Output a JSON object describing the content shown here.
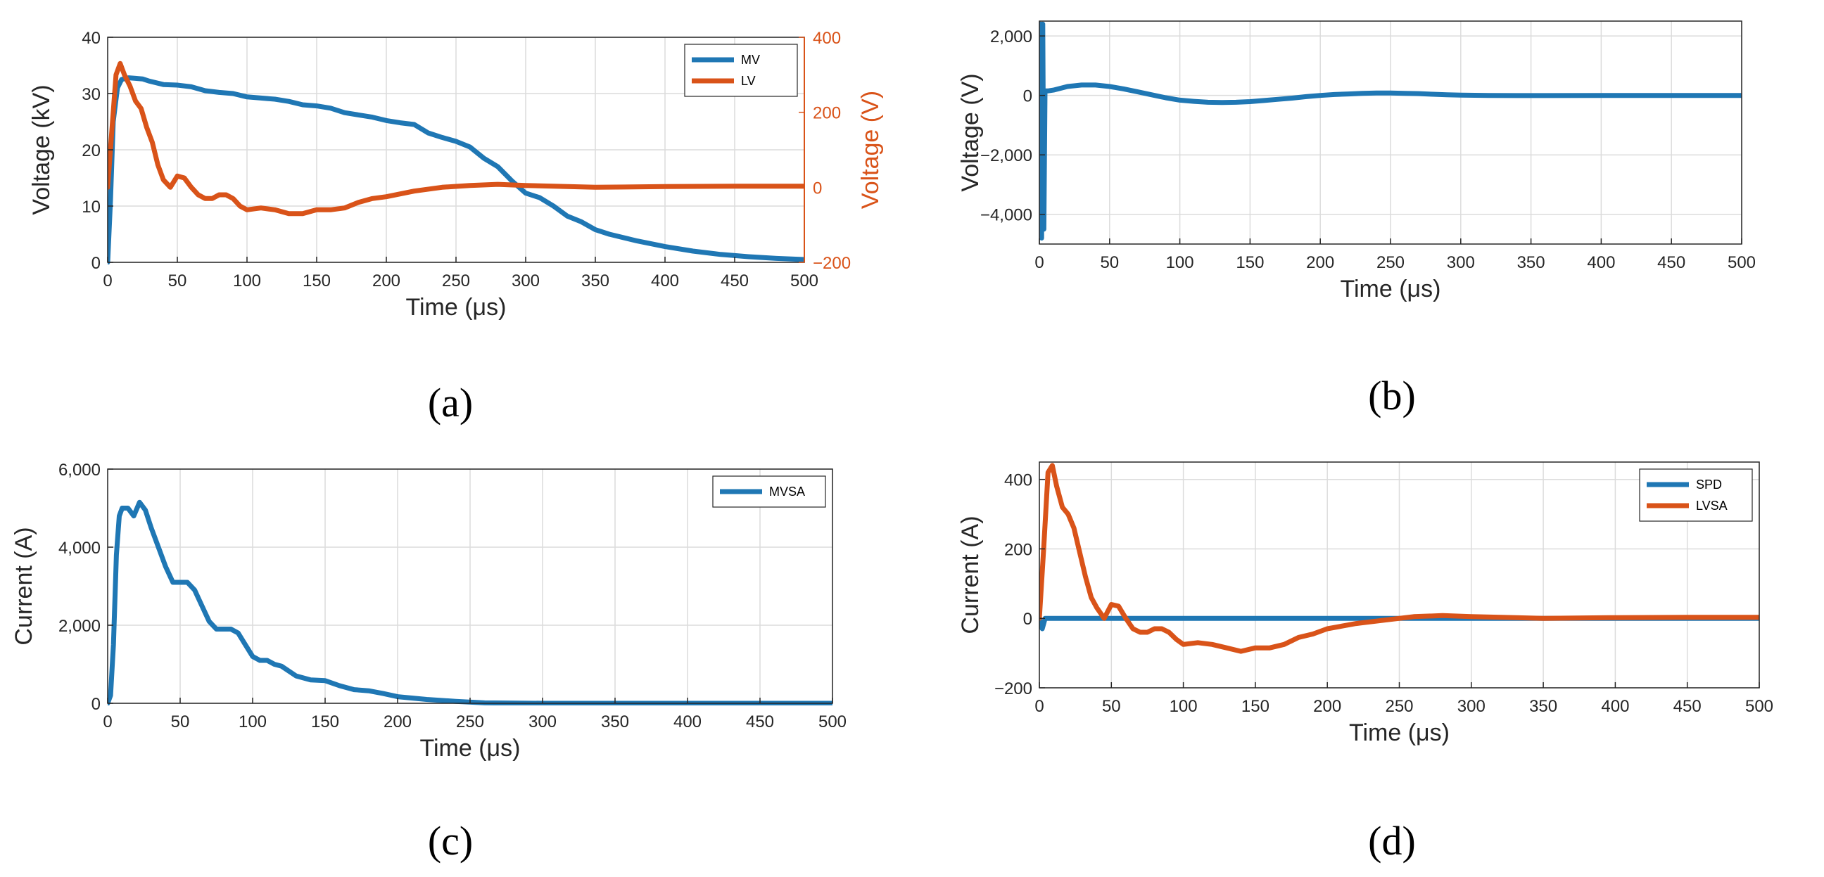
{
  "colors": {
    "blue": "#1f77b4",
    "orange": "#d95319",
    "grid": "#dcdcdc",
    "axis": "#262626"
  },
  "chart_data": [
    {
      "panel": "(a)",
      "type": "line",
      "xlabel": "Time (μs)",
      "ylabel": "Voltage (kV)",
      "ylabel_right": "Voltage (V)",
      "xlim": [
        0,
        500
      ],
      "ylim": [
        0,
        40
      ],
      "ylim_right": [
        -200,
        400
      ],
      "xticks": [
        0,
        50,
        100,
        150,
        200,
        250,
        300,
        350,
        400,
        450,
        500
      ],
      "yticks": [
        0,
        10,
        20,
        30,
        40
      ],
      "yticks_right": [
        -200,
        0,
        200,
        400
      ],
      "grid": true,
      "legend_position": "top-right",
      "series": [
        {
          "name": "MV",
          "color": "#1f77b4",
          "axis": "left",
          "x": [
            0,
            2,
            4,
            7,
            10,
            15,
            20,
            25,
            30,
            40,
            50,
            60,
            70,
            80,
            90,
            100,
            110,
            120,
            130,
            140,
            150,
            160,
            170,
            180,
            190,
            200,
            210,
            220,
            230,
            240,
            250,
            260,
            270,
            280,
            290,
            300,
            310,
            320,
            330,
            340,
            350,
            360,
            380,
            400,
            420,
            440,
            460,
            480,
            500
          ],
          "y": [
            0,
            11,
            25,
            31,
            32.5,
            32.8,
            32.7,
            32.6,
            32.2,
            31.6,
            31.5,
            31.2,
            30.5,
            30.2,
            30.0,
            29.4,
            29.2,
            29.0,
            28.6,
            28.0,
            27.8,
            27.4,
            26.6,
            26.2,
            25.8,
            25.2,
            24.8,
            24.5,
            23.0,
            22.2,
            21.5,
            20.5,
            18.5,
            17.0,
            14.5,
            12.3,
            11.5,
            10.0,
            8.2,
            7.2,
            5.8,
            5.0,
            3.8,
            2.8,
            2.0,
            1.4,
            1.0,
            0.7,
            0.5
          ]
        },
        {
          "name": "LV",
          "color": "#d95319",
          "axis": "right",
          "x": [
            0,
            3,
            6,
            9,
            12,
            16,
            20,
            24,
            28,
            32,
            36,
            40,
            45,
            50,
            55,
            60,
            65,
            70,
            75,
            80,
            85,
            90,
            95,
            100,
            110,
            120,
            130,
            140,
            150,
            160,
            170,
            180,
            190,
            200,
            220,
            240,
            260,
            280,
            300,
            350,
            400,
            450,
            500
          ],
          "y": [
            0,
            150,
            300,
            330,
            300,
            270,
            230,
            210,
            160,
            120,
            60,
            20,
            0,
            30,
            25,
            0,
            -20,
            -30,
            -30,
            -20,
            -20,
            -30,
            -50,
            -60,
            -55,
            -60,
            -70,
            -70,
            -60,
            -60,
            -55,
            -40,
            -30,
            -25,
            -10,
            0,
            5,
            8,
            5,
            0,
            2,
            3,
            3
          ]
        }
      ]
    },
    {
      "panel": "(b)",
      "type": "line",
      "xlabel": "Time (μs)",
      "ylabel": "Voltage (V)",
      "xlim": [
        0,
        500
      ],
      "ylim": [
        -5000,
        2500
      ],
      "xticks": [
        0,
        50,
        100,
        150,
        200,
        250,
        300,
        350,
        400,
        450,
        500
      ],
      "yticks": [
        -4000,
        -2000,
        0,
        2000
      ],
      "ytick_labels": [
        "−4,000",
        "−2,000",
        "0",
        "2,000"
      ],
      "grid": true,
      "series": [
        {
          "color": "#1f77b4",
          "x": [
            0,
            0.8,
            1.6,
            2.4,
            3.2,
            4,
            6,
            10,
            20,
            30,
            40,
            50,
            60,
            70,
            80,
            90,
            100,
            110,
            120,
            130,
            140,
            150,
            160,
            170,
            180,
            190,
            200,
            210,
            220,
            230,
            240,
            250,
            260,
            270,
            280,
            290,
            300,
            320,
            340,
            360,
            400,
            450,
            500
          ],
          "y": [
            0,
            2400,
            -4800,
            2400,
            -4500,
            150,
            150,
            180,
            300,
            350,
            350,
            300,
            220,
            120,
            20,
            -80,
            -160,
            -200,
            -230,
            -240,
            -230,
            -210,
            -170,
            -130,
            -90,
            -40,
            0,
            30,
            50,
            70,
            80,
            80,
            70,
            60,
            40,
            20,
            10,
            0,
            -5,
            -5,
            0,
            0,
            0
          ]
        }
      ]
    },
    {
      "panel": "(c)",
      "type": "line",
      "xlabel": "Time (μs)",
      "ylabel": "Current (A)",
      "xlim": [
        0,
        500
      ],
      "ylim": [
        0,
        6000
      ],
      "xticks": [
        0,
        50,
        100,
        150,
        200,
        250,
        300,
        350,
        400,
        450,
        500
      ],
      "yticks": [
        0,
        2000,
        4000,
        6000
      ],
      "ytick_labels": [
        "0",
        "2,000",
        "4,000",
        "6,000"
      ],
      "grid": true,
      "legend_position": "top-right",
      "series": [
        {
          "name": "MVSA",
          "color": "#1f77b4",
          "x": [
            0,
            2,
            4,
            6,
            8,
            10,
            14,
            18,
            22,
            26,
            30,
            35,
            40,
            45,
            50,
            55,
            60,
            65,
            70,
            75,
            80,
            85,
            90,
            95,
            100,
            105,
            110,
            115,
            120,
            130,
            140,
            150,
            160,
            170,
            180,
            190,
            200,
            220,
            240,
            260,
            300,
            350,
            400,
            450,
            500
          ],
          "y": [
            0,
            200,
            1500,
            3800,
            4800,
            5000,
            5000,
            4800,
            5150,
            4950,
            4500,
            4000,
            3500,
            3100,
            3100,
            3100,
            2900,
            2500,
            2100,
            1900,
            1900,
            1900,
            1800,
            1500,
            1200,
            1100,
            1100,
            1000,
            950,
            700,
            600,
            580,
            450,
            350,
            320,
            250,
            170,
            100,
            50,
            10,
            0,
            0,
            0,
            0,
            0
          ]
        }
      ]
    },
    {
      "panel": "(d)",
      "type": "line",
      "xlabel": "Time (μs)",
      "ylabel": "Current (A)",
      "xlim": [
        0,
        500
      ],
      "ylim": [
        -200,
        450
      ],
      "xticks": [
        0,
        50,
        100,
        150,
        200,
        250,
        300,
        350,
        400,
        450,
        500
      ],
      "yticks": [
        -200,
        0,
        200,
        400
      ],
      "ytick_labels": [
        "−200",
        "0",
        "200",
        "400"
      ],
      "grid": true,
      "legend_position": "top-right",
      "series": [
        {
          "name": "SPD",
          "color": "#1f77b4",
          "x": [
            0,
            2,
            4,
            8,
            500
          ],
          "y": [
            0,
            -30,
            0,
            0,
            0
          ]
        },
        {
          "name": "LVSA",
          "color": "#d95319",
          "x": [
            0,
            3,
            6,
            9,
            12,
            16,
            20,
            24,
            28,
            32,
            36,
            40,
            45,
            50,
            55,
            60,
            65,
            70,
            75,
            80,
            85,
            90,
            95,
            100,
            110,
            120,
            130,
            140,
            150,
            160,
            170,
            180,
            190,
            200,
            220,
            240,
            260,
            280,
            300,
            350,
            400,
            450,
            500
          ],
          "y": [
            0,
            200,
            420,
            440,
            380,
            320,
            300,
            260,
            190,
            120,
            60,
            30,
            0,
            40,
            35,
            0,
            -30,
            -40,
            -40,
            -30,
            -30,
            -40,
            -60,
            -75,
            -70,
            -75,
            -85,
            -95,
            -85,
            -85,
            -75,
            -55,
            -45,
            -30,
            -15,
            -5,
            5,
            8,
            5,
            0,
            2,
            3,
            3
          ]
        }
      ]
    }
  ]
}
